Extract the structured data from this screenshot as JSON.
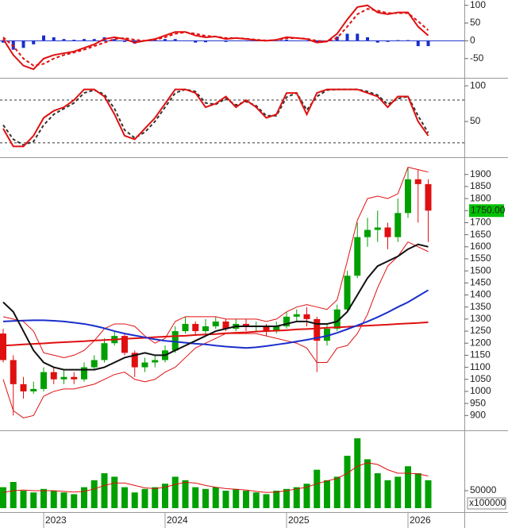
{
  "chart_data": [
    {
      "type": "line",
      "ylim": [
        -102,
        115
      ],
      "yticks": [
        100,
        50,
        0,
        -50
      ],
      "series": [
        {
          "style": "bar",
          "color": "#1a2ecc",
          "values": [
            -5,
            -25,
            -20,
            -10,
            15,
            10,
            5,
            3,
            5,
            5,
            10,
            5,
            -3,
            -8,
            0,
            2,
            5,
            5,
            1,
            -5,
            -4,
            0,
            -3,
            0,
            -1,
            -1,
            -1,
            1,
            3,
            0,
            -1,
            -5,
            0,
            12,
            20,
            20,
            10,
            -5,
            -3,
            2,
            2,
            -15,
            -15
          ]
        },
        {
          "style": "dashed",
          "color": "#e01010",
          "values": [
            10,
            -15,
            -50,
            -70,
            -65,
            -50,
            -40,
            -33,
            -25,
            -15,
            -5,
            5,
            8,
            3,
            0,
            3,
            10,
            20,
            24,
            20,
            14,
            12,
            8,
            8,
            6,
            3,
            1,
            2,
            7,
            8,
            6,
            0,
            -2,
            8,
            40,
            75,
            90,
            85,
            78,
            78,
            78,
            55,
            30
          ]
        },
        {
          "style": "solid",
          "color": "#e01010",
          "values": [
            5,
            -40,
            -70,
            -80,
            -50,
            -40,
            -35,
            -30,
            -20,
            -10,
            5,
            10,
            5,
            -5,
            0,
            5,
            15,
            25,
            25,
            15,
            10,
            12,
            5,
            8,
            5,
            2,
            0,
            3,
            10,
            8,
            5,
            -5,
            -2,
            20,
            60,
            95,
            100,
            80,
            75,
            80,
            80,
            40,
            15
          ]
        }
      ]
    },
    {
      "type": "line",
      "ylim": [
        1,
        109
      ],
      "yticks": [
        100,
        50
      ],
      "hlines": [
        80,
        20
      ],
      "series": [
        {
          "style": "dashed",
          "color": "#333333",
          "values": [
            45,
            25,
            17,
            22,
            45,
            60,
            68,
            76,
            90,
            94,
            88,
            68,
            38,
            27,
            35,
            50,
            70,
            90,
            95,
            92,
            76,
            74,
            82,
            73,
            78,
            72,
            58,
            58,
            84,
            90,
            66,
            85,
            94,
            95,
            95,
            95,
            92,
            87,
            74,
            82,
            85,
            58,
            34
          ]
        },
        {
          "style": "solid",
          "color": "#e01010",
          "values": [
            40,
            15,
            15,
            30,
            55,
            65,
            70,
            80,
            95,
            95,
            85,
            60,
            30,
            25,
            40,
            55,
            75,
            95,
            95,
            90,
            70,
            75,
            85,
            70,
            80,
            70,
            55,
            60,
            90,
            90,
            60,
            90,
            95,
            95,
            95,
            95,
            90,
            85,
            70,
            85,
            85,
            50,
            30
          ]
        }
      ]
    },
    {
      "type": "candlestick",
      "ylim": [
        845,
        1965
      ],
      "yticks": [
        900,
        950,
        1000,
        1050,
        1100,
        1150,
        1200,
        1250,
        1300,
        1350,
        1400,
        1450,
        1500,
        1550,
        1600,
        1650,
        1700,
        1750,
        1800,
        1850,
        1900
      ],
      "up_color": "#00a000",
      "down_color": "#e01010",
      "price_tag": "1750.00",
      "tag_color": "#00c000",
      "open": [
        1240,
        1130,
        1030,
        1000,
        1010,
        1080,
        1050,
        1060,
        1050,
        1100,
        1130,
        1200,
        1230,
        1160,
        1100,
        1120,
        1130,
        1170,
        1250,
        1280,
        1250,
        1270,
        1290,
        1260,
        1280,
        1270,
        1270,
        1250,
        1270,
        1310,
        1320,
        1300,
        1210,
        1260,
        1340,
        1480,
        1640,
        1670,
        1680,
        1640,
        1740,
        1880,
        1860
      ],
      "high": [
        1260,
        1150,
        1060,
        1040,
        1100,
        1100,
        1090,
        1080,
        1120,
        1150,
        1220,
        1250,
        1240,
        1170,
        1140,
        1150,
        1190,
        1270,
        1310,
        1290,
        1300,
        1310,
        1300,
        1300,
        1300,
        1290,
        1280,
        1290,
        1330,
        1340,
        1350,
        1310,
        1280,
        1360,
        1500,
        1700,
        1720,
        1750,
        1700,
        1800,
        1930,
        1920,
        1880
      ],
      "low": [
        1120,
        900,
        970,
        990,
        1000,
        1030,
        1030,
        1030,
        1040,
        1090,
        1120,
        1190,
        1150,
        1060,
        1080,
        1100,
        1120,
        1160,
        1240,
        1230,
        1240,
        1260,
        1250,
        1250,
        1250,
        1250,
        1230,
        1240,
        1260,
        1290,
        1270,
        1080,
        1190,
        1250,
        1330,
        1470,
        1600,
        1620,
        1590,
        1620,
        1720,
        1700,
        1620
      ],
      "close": [
        1130,
        1030,
        1000,
        1010,
        1080,
        1050,
        1060,
        1050,
        1100,
        1130,
        1200,
        1230,
        1160,
        1100,
        1120,
        1130,
        1170,
        1250,
        1280,
        1250,
        1270,
        1290,
        1260,
        1280,
        1270,
        1270,
        1250,
        1270,
        1310,
        1320,
        1300,
        1210,
        1260,
        1340,
        1480,
        1640,
        1670,
        1680,
        1640,
        1740,
        1880,
        1860,
        1750
      ],
      "series": [
        {
          "style": "thin",
          "color": "#e01010",
          "values": [
            1310,
            1300,
            1290,
            1250,
            1160,
            1150,
            1140,
            1150,
            1170,
            1210,
            1260,
            1280,
            1280,
            1270,
            1230,
            1200,
            1220,
            1290,
            1310,
            1310,
            1310,
            1310,
            1300,
            1300,
            1300,
            1300,
            1290,
            1300,
            1330,
            1350,
            1360,
            1350,
            1340,
            1380,
            1540,
            1710,
            1800,
            1810,
            1800,
            1820,
            1930,
            1920,
            1910
          ]
        },
        {
          "style": "thin",
          "color": "#e01010",
          "values": [
            1050,
            920,
            890,
            900,
            980,
            1000,
            1010,
            1010,
            1020,
            1030,
            1050,
            1070,
            1080,
            1050,
            1040,
            1050,
            1080,
            1100,
            1140,
            1180,
            1200,
            1220,
            1240,
            1240,
            1240,
            1240,
            1230,
            1220,
            1210,
            1200,
            1180,
            1120,
            1120,
            1180,
            1190,
            1240,
            1320,
            1430,
            1520,
            1560,
            1620,
            1600,
            1580
          ]
        },
        {
          "style": "solid",
          "color": "#e01010",
          "values": [
            1190,
            1192,
            1195,
            1197,
            1199,
            1202,
            1204,
            1206,
            1208,
            1211,
            1213,
            1215,
            1218,
            1220,
            1222,
            1225,
            1227,
            1229,
            1231,
            1234,
            1236,
            1238,
            1241,
            1243,
            1245,
            1248,
            1250,
            1252,
            1254,
            1257,
            1259,
            1261,
            1264,
            1266,
            1268,
            1271,
            1273,
            1275,
            1277,
            1280,
            1282,
            1284,
            1287
          ]
        },
        {
          "style": "solid",
          "color": "#1a2ecc",
          "values": [
            1290,
            1292,
            1294,
            1295,
            1295,
            1293,
            1290,
            1285,
            1280,
            1272,
            1262,
            1250,
            1240,
            1232,
            1224,
            1216,
            1210,
            1206,
            1202,
            1198,
            1195,
            1190,
            1186,
            1183,
            1180,
            1183,
            1188,
            1194,
            1200,
            1207,
            1214,
            1222,
            1230,
            1243,
            1258,
            1274,
            1290,
            1308,
            1328,
            1350,
            1370,
            1395,
            1420
          ]
        },
        {
          "style": "solid",
          "color": "#111111",
          "values": [
            1370,
            1330,
            1250,
            1170,
            1120,
            1100,
            1090,
            1090,
            1090,
            1090,
            1100,
            1120,
            1140,
            1150,
            1160,
            1150,
            1150,
            1170,
            1190,
            1210,
            1230,
            1250,
            1260,
            1270,
            1270,
            1270,
            1270,
            1270,
            1280,
            1290,
            1290,
            1280,
            1280,
            1290,
            1330,
            1400,
            1470,
            1520,
            1540,
            1560,
            1590,
            1610,
            1600
          ]
        }
      ]
    },
    {
      "type": "bar",
      "ylim": [
        0,
        216000
      ],
      "yticks": [
        50000
      ],
      "unit_label": "x100000",
      "color": "#00a000",
      "categories": [
        null,
        null,
        null,
        null,
        "2023",
        null,
        null,
        null,
        null,
        null,
        null,
        null,
        null,
        null,
        null,
        null,
        "2024",
        null,
        null,
        null,
        null,
        null,
        null,
        null,
        null,
        null,
        null,
        null,
        "2025",
        null,
        null,
        null,
        null,
        null,
        null,
        null,
        null,
        null,
        null,
        null,
        "2026",
        null,
        null
      ],
      "values": [
        60000,
        75000,
        50000,
        45000,
        55000,
        50000,
        45000,
        40000,
        60000,
        80000,
        100000,
        90000,
        60000,
        45000,
        55000,
        60000,
        70000,
        90000,
        80000,
        60000,
        55000,
        60000,
        50000,
        55000,
        50000,
        45000,
        40000,
        50000,
        55000,
        60000,
        70000,
        110000,
        80000,
        90000,
        150000,
        200000,
        140000,
        100000,
        80000,
        90000,
        120000,
        100000,
        80000
      ],
      "series": [
        {
          "style": "thin",
          "color": "#e01010",
          "values": [
            45000,
            50000,
            52000,
            50000,
            50000,
            50000,
            48000,
            46000,
            48000,
            55000,
            65000,
            72000,
            72000,
            65000,
            58000,
            56000,
            60000,
            68000,
            74000,
            72000,
            65000,
            60000,
            56000,
            54000,
            52000,
            48000,
            45000,
            46000,
            50000,
            55000,
            60000,
            70000,
            78000,
            85000,
            100000,
            120000,
            130000,
            125000,
            110000,
            100000,
            100000,
            98000,
            92000
          ]
        }
      ]
    }
  ]
}
